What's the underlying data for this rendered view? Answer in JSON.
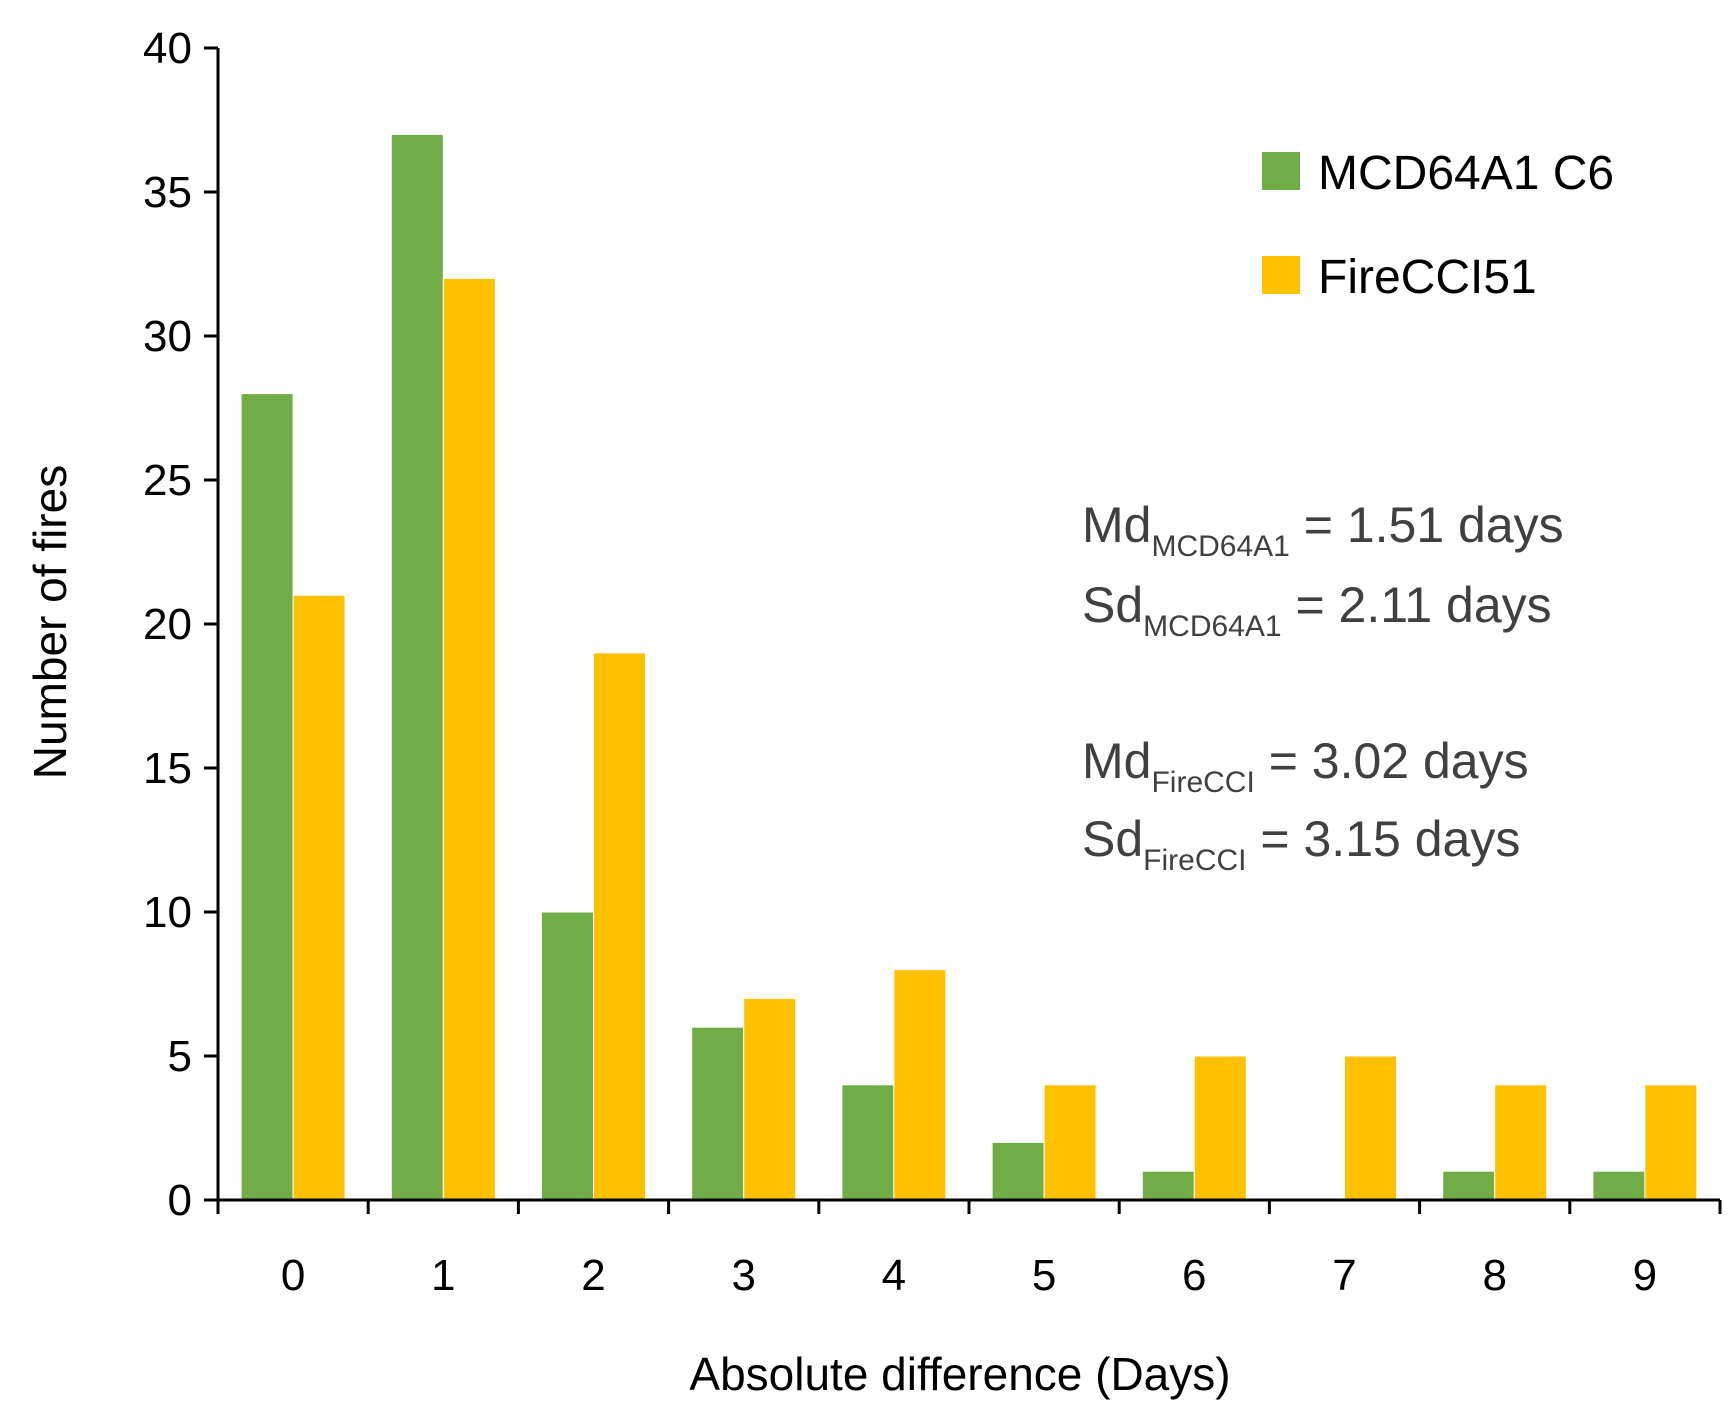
{
  "chart_data": {
    "type": "bar",
    "title": "",
    "xlabel": "Absolute difference (Days)",
    "ylabel": "Number of fires",
    "categories": [
      "0",
      "1",
      "2",
      "3",
      "4",
      "5",
      "6",
      "7",
      "8",
      "9"
    ],
    "ylim": [
      0,
      40
    ],
    "yticks": [
      0,
      5,
      10,
      15,
      20,
      25,
      30,
      35,
      40
    ],
    "ytick_labels": [
      "0",
      "5",
      "10",
      "15",
      "20",
      "25",
      "30",
      "35",
      "40"
    ],
    "grid": false,
    "legend_position": "top-right",
    "series": [
      {
        "name": "MCD64A1 C6",
        "color": "#70AD47",
        "values": [
          28,
          37,
          10,
          6,
          4,
          2,
          1,
          0,
          1,
          1
        ]
      },
      {
        "name": "FireCCI51",
        "color": "#FFC000",
        "values": [
          21,
          32,
          19,
          7,
          8,
          4,
          5,
          5,
          4,
          4
        ]
      }
    ],
    "annotations": [
      {
        "base": "Md",
        "sub": "MCD64A1",
        "rest": " = 1.51 days"
      },
      {
        "base": "Sd",
        "sub": "MCD64A1",
        "rest": " = 2.11 days"
      },
      {
        "base": "Md",
        "sub": "FireCCI",
        "rest": " = 3.02 days"
      },
      {
        "base": "Sd",
        "sub": "FireCCI",
        "rest": " = 3.15 days"
      }
    ]
  }
}
